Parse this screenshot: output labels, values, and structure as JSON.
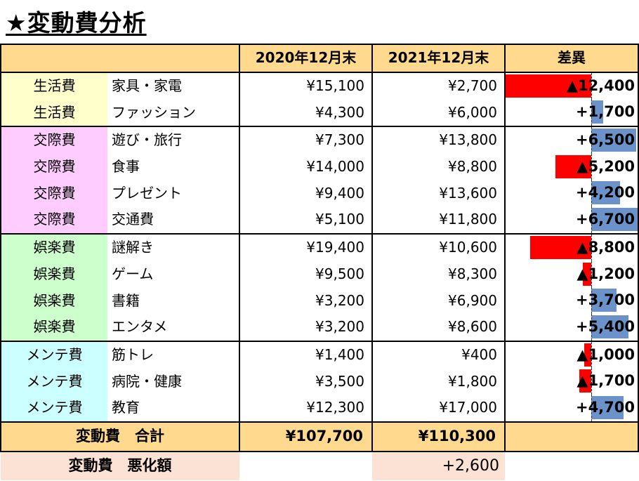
{
  "title": "★変動費分析",
  "headers": {
    "col_2020": "2020年12月末",
    "col_2021": "2021年12月末",
    "col_diff": "差異"
  },
  "rows": [
    {
      "cat": "生活費",
      "item": "家具・家電",
      "v2020": "¥15,100",
      "v2021": "¥2,700",
      "diff": "▲12,400",
      "diff_value": -12400,
      "group": "life"
    },
    {
      "cat": "生活費",
      "item": "ファッション",
      "v2020": "¥4,300",
      "v2021": "¥6,000",
      "diff": "+1,700",
      "diff_value": 1700,
      "group": "life"
    },
    {
      "cat": "交際費",
      "item": "遊び・旅行",
      "v2020": "¥7,300",
      "v2021": "¥13,800",
      "diff": "+6,500",
      "diff_value": 6500,
      "group": "social"
    },
    {
      "cat": "交際費",
      "item": "食事",
      "v2020": "¥14,000",
      "v2021": "¥8,800",
      "diff": "▲5,200",
      "diff_value": -5200,
      "group": "social"
    },
    {
      "cat": "交際費",
      "item": "プレゼント",
      "v2020": "¥9,400",
      "v2021": "¥13,600",
      "diff": "+4,200",
      "diff_value": 4200,
      "group": "social"
    },
    {
      "cat": "交際費",
      "item": "交通費",
      "v2020": "¥5,100",
      "v2021": "¥11,800",
      "diff": "+6,700",
      "diff_value": 6700,
      "group": "social"
    },
    {
      "cat": "娯楽費",
      "item": "謎解き",
      "v2020": "¥19,400",
      "v2021": "¥10,600",
      "diff": "▲8,800",
      "diff_value": -8800,
      "group": "fun"
    },
    {
      "cat": "娯楽費",
      "item": "ゲーム",
      "v2020": "¥9,500",
      "v2021": "¥8,300",
      "diff": "▲1,200",
      "diff_value": -1200,
      "group": "fun"
    },
    {
      "cat": "娯楽費",
      "item": "書籍",
      "v2020": "¥3,200",
      "v2021": "¥6,900",
      "diff": "+3,700",
      "diff_value": 3700,
      "group": "fun"
    },
    {
      "cat": "娯楽費",
      "item": "エンタメ",
      "v2020": "¥3,200",
      "v2021": "¥8,600",
      "diff": "+5,400",
      "diff_value": 5400,
      "group": "fun"
    },
    {
      "cat": "メンテ費",
      "item": "筋トレ",
      "v2020": "¥1,400",
      "v2021": "¥400",
      "diff": "▲1,000",
      "diff_value": -1000,
      "group": "maint"
    },
    {
      "cat": "メンテ費",
      "item": "病院・健康",
      "v2020": "¥3,500",
      "v2021": "¥1,800",
      "diff": "▲1,700",
      "diff_value": -1700,
      "group": "maint"
    },
    {
      "cat": "メンテ費",
      "item": "教育",
      "v2020": "¥12,300",
      "v2021": "¥17,000",
      "diff": "+4,700",
      "diff_value": 4700,
      "group": "maint"
    }
  ],
  "total": {
    "label": "変動費　合計",
    "v2020": "¥107,700",
    "v2021": "¥110,300"
  },
  "worse": {
    "label": "変動費　悪化額",
    "value": "+2,600"
  },
  "colors": {
    "header": "#ffd98e",
    "life": "#ffffcc",
    "social": "#ffccff",
    "fun": "#ccffcc",
    "maint": "#ccffff",
    "neg_bar": "#ff0000",
    "pos_bar": "#6b93c9",
    "worse_bg": "#fbe2d5"
  }
}
